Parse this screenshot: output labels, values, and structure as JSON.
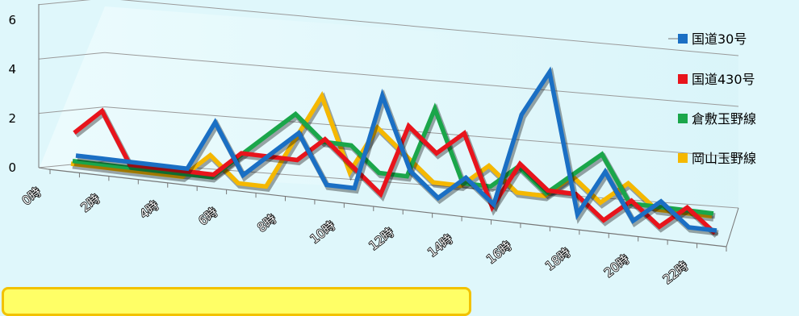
{
  "chart_data": {
    "type": "line",
    "x": [
      "0時",
      "1時",
      "2時",
      "3時",
      "4時",
      "5時",
      "6時",
      "7時",
      "8時",
      "9時",
      "10時",
      "11時",
      "12時",
      "13時",
      "14時",
      "15時",
      "16時",
      "17時",
      "18時",
      "19時",
      "20時",
      "21時",
      "22時",
      "23時"
    ],
    "x_tick_labels": [
      "0時",
      "2時",
      "4時",
      "6時",
      "8時",
      "10時",
      "12時",
      "14時",
      "16時",
      "18時",
      "20時",
      "22時"
    ],
    "ylim": [
      0,
      6
    ],
    "y_ticks": [
      "0",
      "2",
      "4",
      "6"
    ],
    "grid": true,
    "legend_position": "right",
    "series": [
      {
        "name": "国道30号",
        "color": "#1a6fc4",
        "values": [
          0,
          0,
          0,
          0,
          0,
          2,
          0,
          1,
          2,
          0,
          0,
          4,
          1,
          0,
          1,
          0,
          4,
          6,
          0,
          2,
          0,
          1,
          0,
          0
        ]
      },
      {
        "name": "国道430号",
        "color": "#e8141c",
        "values": [
          1,
          2,
          0,
          0,
          0,
          0,
          1,
          1,
          1,
          2,
          1,
          0,
          3,
          2,
          3,
          0,
          2,
          1,
          1,
          0,
          1,
          0,
          1,
          0
        ]
      },
      {
        "name": "倉敷玉野線",
        "color": "#1aa64a",
        "values": [
          0,
          0,
          0,
          0,
          0,
          0,
          1,
          2,
          3,
          2,
          2,
          1,
          1,
          4,
          1,
          1,
          2,
          1,
          2,
          3,
          1,
          1,
          1,
          1
        ]
      },
      {
        "name": "岡山玉野線",
        "color": "#f5b800",
        "values": [
          0,
          0,
          0,
          0,
          0,
          1,
          0,
          0,
          2,
          4,
          1,
          3,
          2,
          1,
          1,
          2,
          1,
          1,
          2,
          1,
          2,
          1,
          1,
          1
        ]
      }
    ]
  },
  "note": {
    "text": ""
  }
}
